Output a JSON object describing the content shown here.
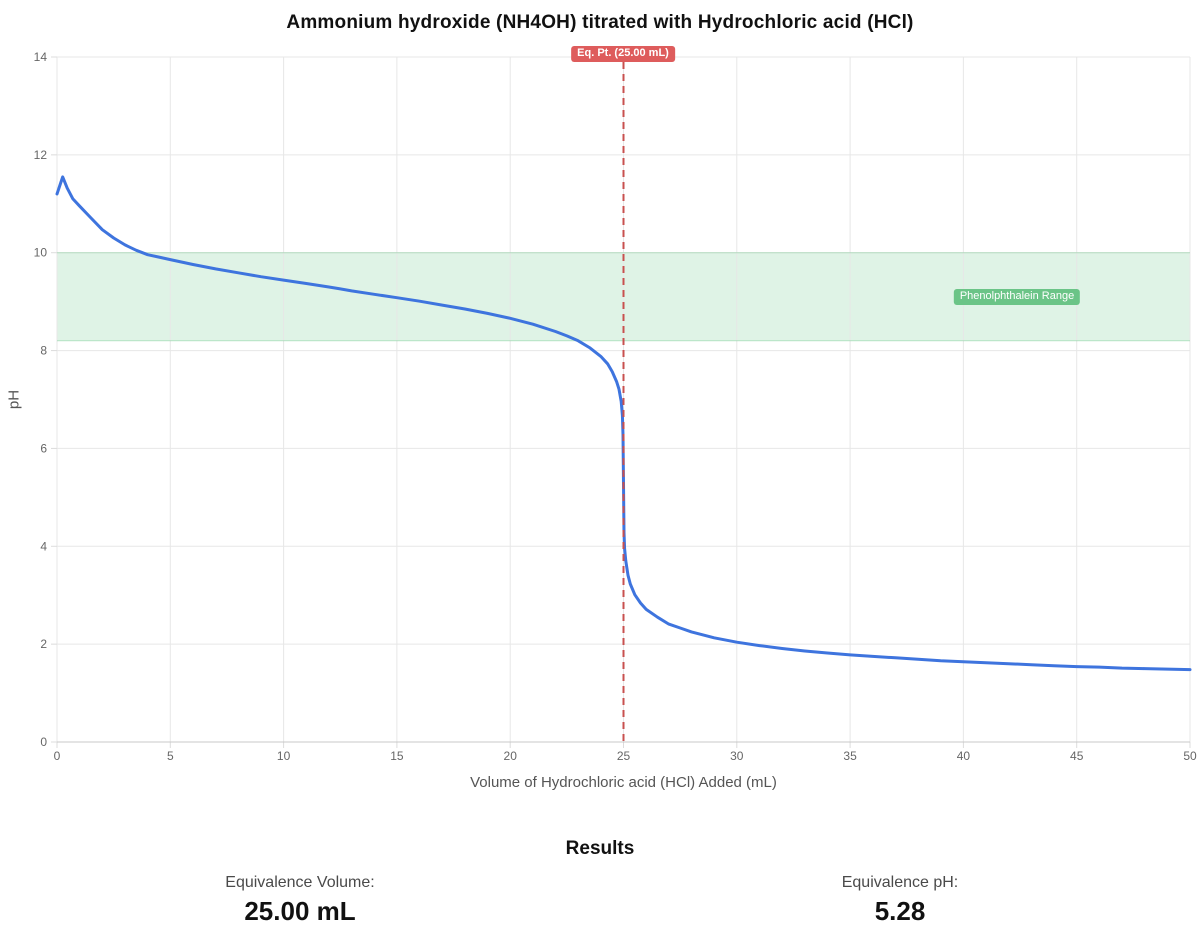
{
  "chart_data": {
    "type": "line",
    "title": "Ammonium hydroxide (NH4OH) titrated with Hydrochloric acid (HCl)",
    "xlabel": "Volume of Hydrochloric acid (HCl) Added (mL)",
    "ylabel": "pH",
    "xlim": [
      0,
      50
    ],
    "ylim": [
      0,
      14
    ],
    "xticks": [
      0,
      5,
      10,
      15,
      20,
      25,
      30,
      35,
      40,
      45,
      50
    ],
    "yticks": [
      0,
      2,
      4,
      6,
      8,
      10,
      12,
      14
    ],
    "grid": true,
    "legend": "none",
    "series": [
      {
        "name": "Titration curve",
        "color": "#3e74de",
        "points": [
          [
            0,
            11.2
          ],
          [
            0.25,
            11.55
          ],
          [
            0.45,
            11.32
          ],
          [
            0.7,
            11.1
          ],
          [
            1,
            10.95
          ],
          [
            1.5,
            10.71
          ],
          [
            2,
            10.47
          ],
          [
            2.5,
            10.3
          ],
          [
            3,
            10.16
          ],
          [
            3.5,
            10.05
          ],
          [
            4,
            9.96
          ],
          [
            4.5,
            9.91
          ],
          [
            5,
            9.86
          ],
          [
            6,
            9.76
          ],
          [
            7,
            9.67
          ],
          [
            8,
            9.59
          ],
          [
            9,
            9.51
          ],
          [
            10,
            9.44
          ],
          [
            11,
            9.37
          ],
          [
            12,
            9.3
          ],
          [
            12.5,
            9.26
          ],
          [
            13,
            9.22
          ],
          [
            14,
            9.15
          ],
          [
            15,
            9.08
          ],
          [
            16,
            9.01
          ],
          [
            17,
            8.93
          ],
          [
            18,
            8.85
          ],
          [
            19,
            8.76
          ],
          [
            20,
            8.66
          ],
          [
            21,
            8.54
          ],
          [
            22,
            8.39
          ],
          [
            22.5,
            8.3
          ],
          [
            23,
            8.2
          ],
          [
            23.5,
            8.06
          ],
          [
            24,
            7.88
          ],
          [
            24.3,
            7.73
          ],
          [
            24.5,
            7.57
          ],
          [
            24.7,
            7.36
          ],
          [
            24.8,
            7.21
          ],
          [
            24.9,
            6.96
          ],
          [
            24.95,
            6.67
          ],
          [
            24.98,
            6.28
          ],
          [
            25,
            5.28
          ],
          [
            25.02,
            4.28
          ],
          [
            25.05,
            3.95
          ],
          [
            25.1,
            3.7
          ],
          [
            25.2,
            3.41
          ],
          [
            25.3,
            3.23
          ],
          [
            25.5,
            3.01
          ],
          [
            25.75,
            2.84
          ],
          [
            26,
            2.71
          ],
          [
            26.5,
            2.55
          ],
          [
            27,
            2.41
          ],
          [
            27.5,
            2.33
          ],
          [
            28,
            2.25
          ],
          [
            29,
            2.13
          ],
          [
            30,
            2.04
          ],
          [
            31,
            1.97
          ],
          [
            32,
            1.91
          ],
          [
            33,
            1.86
          ],
          [
            34,
            1.82
          ],
          [
            35,
            1.78
          ],
          [
            36,
            1.75
          ],
          [
            37,
            1.72
          ],
          [
            38,
            1.69
          ],
          [
            39,
            1.66
          ],
          [
            40,
            1.64
          ],
          [
            41,
            1.62
          ],
          [
            42,
            1.6
          ],
          [
            43,
            1.58
          ],
          [
            44,
            1.56
          ],
          [
            45,
            1.54
          ],
          [
            46,
            1.53
          ],
          [
            47,
            1.51
          ],
          [
            48,
            1.5
          ],
          [
            49,
            1.49
          ],
          [
            50,
            1.48
          ]
        ]
      }
    ],
    "annotations": {
      "equivalence_line": {
        "x": 25,
        "label": "Eq. Pt. (25.00 mL)",
        "line_color": "#c8504f",
        "badge_bg": "#de5c5c"
      },
      "indicator_band": {
        "label": "Phenolphthalein Range",
        "y_min": 8.2,
        "y_max": 10.0,
        "fill": "rgba(111,200,140,0.22)",
        "border": "rgba(111,200,140,0.45)",
        "badge_bg": "#6bc487"
      }
    },
    "style": {
      "grid_color": "#e7e7e7",
      "axis_line_color": "#c8c8c8",
      "tick_color": "#dcdcdc",
      "tick_label_color": "#666666",
      "line_width": 3
    }
  },
  "results": {
    "heading": "Results",
    "items": [
      {
        "label": "Equivalence Volume:",
        "value": "25.00 mL"
      },
      {
        "label": "Equivalence pH:",
        "value": "5.28"
      }
    ]
  }
}
